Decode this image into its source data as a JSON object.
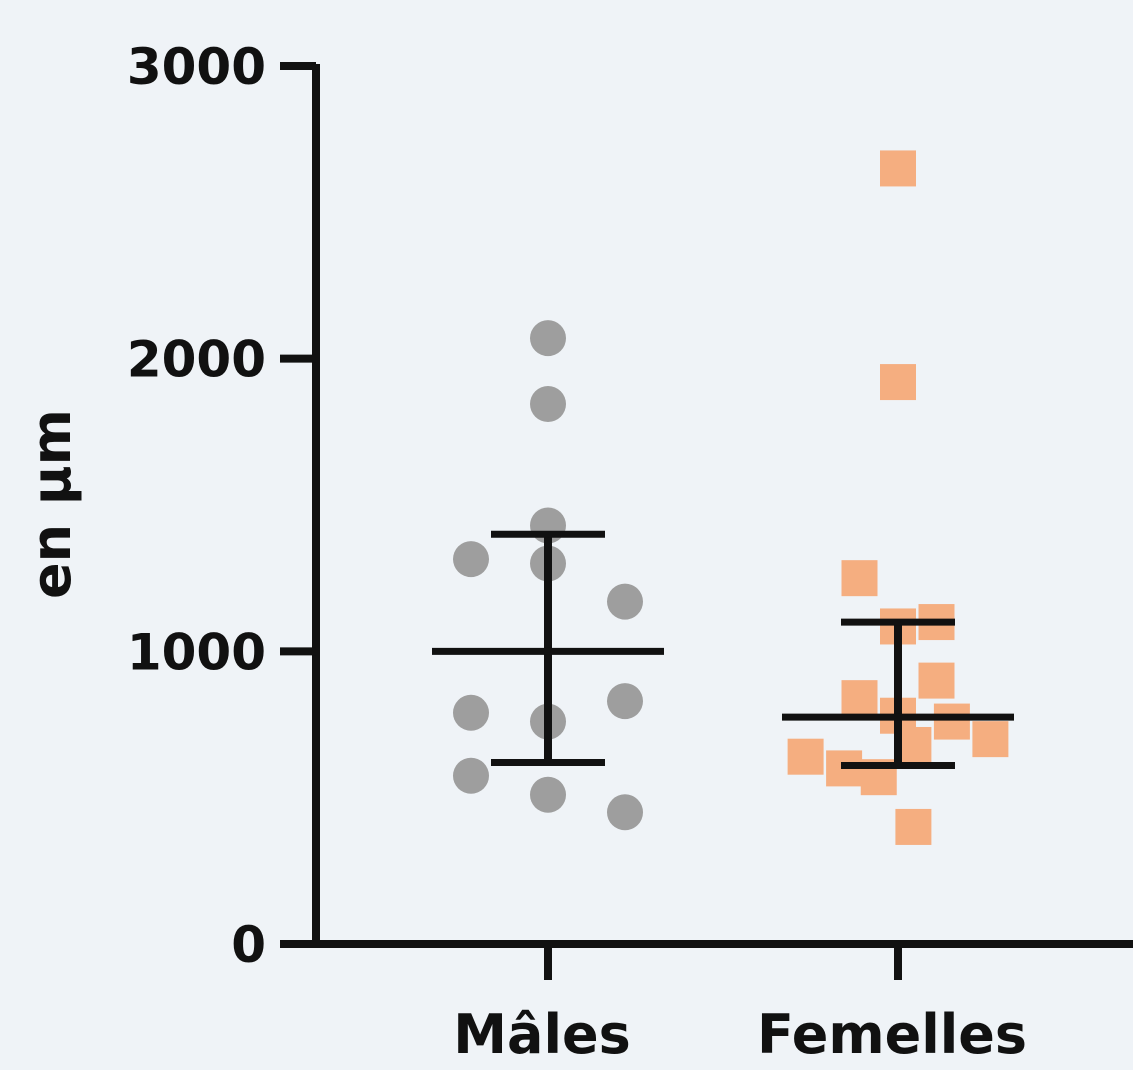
{
  "chart_data": {
    "type": "scatter",
    "title": "",
    "xlabel": "",
    "ylabel": "en µm",
    "ylim": [
      0,
      3000
    ],
    "yticks": [
      "0",
      "1000",
      "2000",
      "3000"
    ],
    "categories": [
      "Mâles",
      "Femelles"
    ],
    "grid": false,
    "legend": "none",
    "series": [
      {
        "category": "Mâles",
        "marker": "circle",
        "color": "#9e9e9e",
        "points": [
          {
            "offset": 0,
            "y": 2070
          },
          {
            "offset": 0,
            "y": 1845
          },
          {
            "offset": 0,
            "y": 1430
          },
          {
            "offset": -1,
            "y": 1315
          },
          {
            "offset": 0,
            "y": 1300
          },
          {
            "offset": 1,
            "y": 1170
          },
          {
            "offset": 1,
            "y": 830
          },
          {
            "offset": -1,
            "y": 790
          },
          {
            "offset": 0,
            "y": 760
          },
          {
            "offset": -1,
            "y": 575
          },
          {
            "offset": 0,
            "y": 510
          },
          {
            "offset": 1,
            "y": 450
          }
        ],
        "mean": 1000,
        "error_low": 620,
        "error_high": 1400
      },
      {
        "category": "Femelles",
        "marker": "square",
        "color": "#f5ae80",
        "points": [
          {
            "offset": 0,
            "y": 2650
          },
          {
            "offset": 0,
            "y": 1920
          },
          {
            "offset": -0.5,
            "y": 1250
          },
          {
            "offset": 0.5,
            "y": 1100
          },
          {
            "offset": 0,
            "y": 1085
          },
          {
            "offset": 0.5,
            "y": 900
          },
          {
            "offset": -0.5,
            "y": 840
          },
          {
            "offset": 0,
            "y": 780
          },
          {
            "offset": 0.7,
            "y": 760
          },
          {
            "offset": 1.2,
            "y": 700
          },
          {
            "offset": 0.2,
            "y": 680
          },
          {
            "offset": -1.2,
            "y": 640
          },
          {
            "offset": -0.7,
            "y": 600
          },
          {
            "offset": -0.25,
            "y": 570
          },
          {
            "offset": 0.2,
            "y": 400
          }
        ],
        "mean": 775,
        "error_low": 610,
        "error_high": 1100
      }
    ],
    "colors": {
      "axis": "#111111",
      "background": "#eff3f7"
    }
  }
}
